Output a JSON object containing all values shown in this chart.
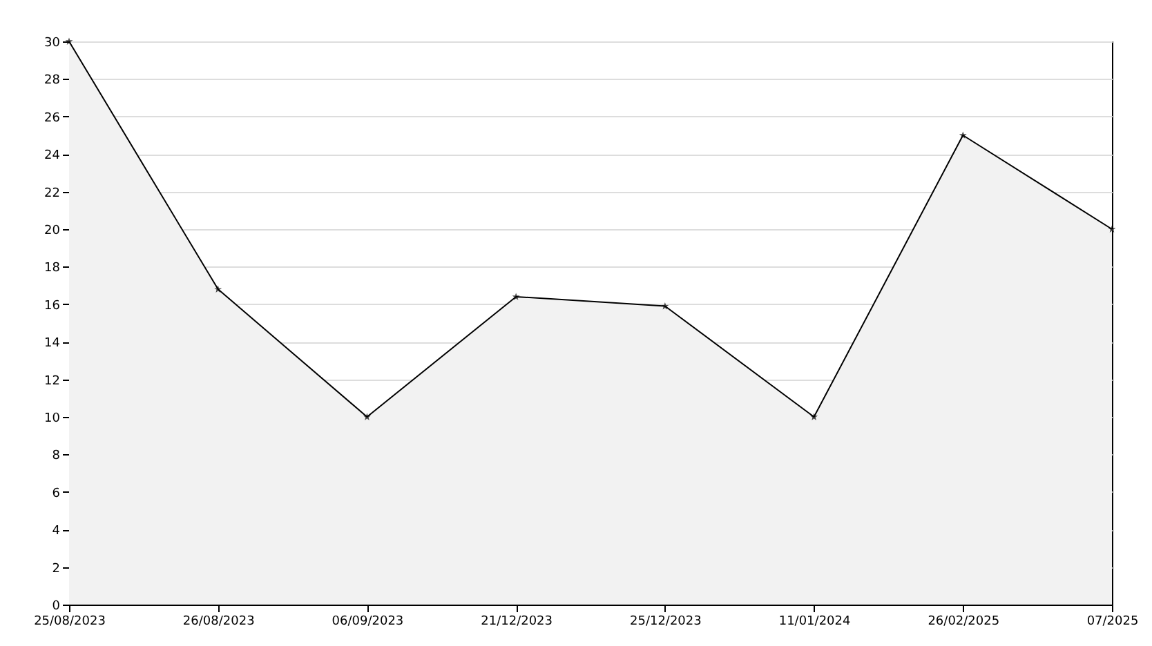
{
  "chart_data": {
    "type": "area",
    "categories": [
      "25/08/2023",
      "26/08/2023",
      "06/09/2023",
      "21/12/2023",
      "25/12/2023",
      "11/01/2024",
      "26/02/2025",
      "07/2025"
    ],
    "series": [
      {
        "color": "#000000",
        "values": [
          30,
          16.8,
          10,
          16.4,
          15.9,
          10,
          25,
          20
        ]
      }
    ],
    "ylim": [
      0,
      30
    ],
    "yticks": [
      0,
      2,
      4,
      6,
      8,
      10,
      12,
      14,
      16,
      18,
      20,
      22,
      24,
      26,
      28,
      30
    ],
    "grid": "y",
    "marker": "star",
    "line_style": "solid"
  }
}
